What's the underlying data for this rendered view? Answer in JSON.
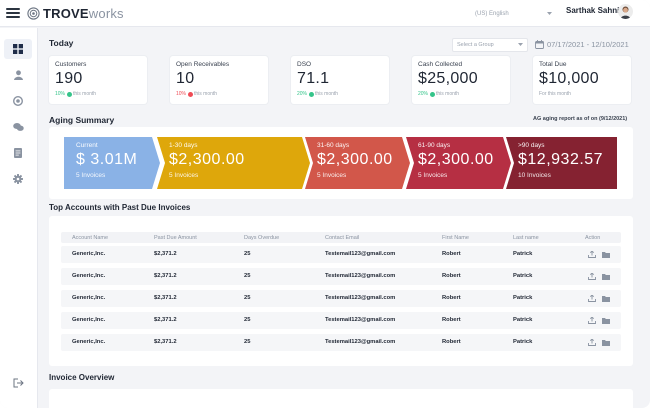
{
  "header": {
    "brand_bold": "TROVE",
    "brand_light": "works",
    "language": "(US) English",
    "user_name": "Sarthak Sahni"
  },
  "today": {
    "title": "Today",
    "group_select_placeholder": "Select a Group",
    "date_range": "07/17/2021 - 12/10/2021",
    "cards": [
      {
        "label": "Customers",
        "value": "190",
        "pct": "10%",
        "note": "this month",
        "trend": "up"
      },
      {
        "label": "Open Receivables",
        "value": "10",
        "pct": "10%",
        "note": "this month",
        "trend": "down"
      },
      {
        "label": "DSO",
        "value": "71.1",
        "pct": "20%",
        "note": "this month",
        "trend": "up"
      },
      {
        "label": "Cash Collected",
        "value": "$25,000",
        "pct": "20%",
        "note": "this month",
        "trend": "up"
      },
      {
        "label": "Total Due",
        "value": "$10,000",
        "pct": "",
        "note": "For this month",
        "trend": "none"
      }
    ]
  },
  "aging": {
    "title": "Aging Summary",
    "note": "AG aging report as of on (9/12/2021)",
    "segments": [
      {
        "range": "Current",
        "amount": "$ 3.01M",
        "count": "5 Invoices",
        "color": "#8ab2e6"
      },
      {
        "range": "1-30 days",
        "amount": "$2,300.00",
        "count": "5 Invoices",
        "color": "#dea70b"
      },
      {
        "range": "31-60 days",
        "amount": "$2,300.00",
        "count": "5 Invoices",
        "color": "#d2574a"
      },
      {
        "range": "61-90 days",
        "amount": "$2,300.00",
        "count": "5 Invoices",
        "color": "#b62f43"
      },
      {
        "range": ">90 days",
        "amount": "$12,932.57",
        "count": "10 Invoices",
        "color": "#852231"
      }
    ]
  },
  "accounts": {
    "title": "Top Accounts with Past Due Invoices",
    "columns": [
      "Account Name",
      "Past Due Amount",
      "Days Overdue",
      "Contact Email",
      "First Name",
      "Last name",
      "Action"
    ],
    "rows": [
      [
        "Generic,Inc.",
        "$2,371.2",
        "25",
        "Testemail123@gmail.com",
        "Robert",
        "Patrick"
      ],
      [
        "Generic,Inc.",
        "$2,371.2",
        "25",
        "Testemail123@gmail.com",
        "Robert",
        "Patrick"
      ],
      [
        "Generic,Inc.",
        "$2,371.2",
        "25",
        "Testemail123@gmail.com",
        "Robert",
        "Patrick"
      ],
      [
        "Generic,Inc.",
        "$2,371.2",
        "25",
        "Testemail123@gmail.com",
        "Robert",
        "Patrick"
      ],
      [
        "Generic,Inc.",
        "$2,371.2",
        "25",
        "Testemail123@gmail.com",
        "Robert",
        "Patrick"
      ]
    ]
  },
  "overview": {
    "title": "Invoice Overview"
  },
  "colors": {
    "up": "#35c48a",
    "down": "#ef4b55",
    "accent": "#2f6fd8"
  }
}
